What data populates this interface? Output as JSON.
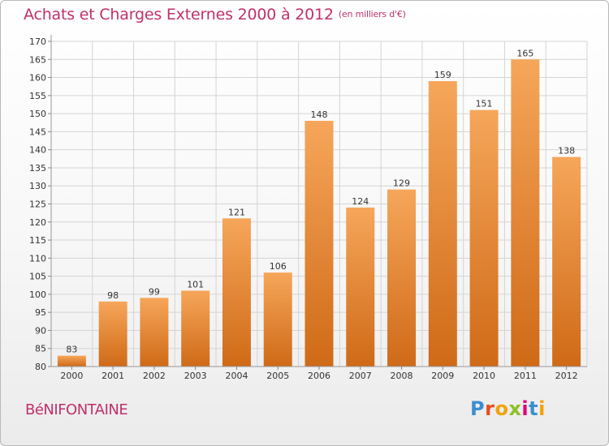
{
  "header": {
    "title": "Achats et Charges Externes 2000 à 2012",
    "subtitle": "(en milliers d'€)"
  },
  "footer": {
    "place": "BéNIFONTAINE",
    "logo_letters": [
      "P",
      "r",
      "o",
      "x",
      "i",
      "t",
      "i"
    ],
    "logo_colors": [
      "#3a8fd0",
      "#e94e1b",
      "#f2a20c",
      "#8cbf26",
      "#e2007a",
      "#3a8fd0",
      "#f2a20c"
    ]
  },
  "colors": {
    "title": "#c0306a",
    "bar_light": "#f6a65a",
    "bar_dark": "#cf6a17",
    "grid": "#d4d4d4",
    "axis_text": "#333333"
  },
  "chart_data": {
    "type": "bar",
    "title": "Achats et Charges Externes 2000 à 2012",
    "xlabel": "",
    "ylabel": "",
    "categories": [
      "2000",
      "2001",
      "2002",
      "2003",
      "2004",
      "2005",
      "2006",
      "2007",
      "2008",
      "2009",
      "2010",
      "2011",
      "2012"
    ],
    "values": [
      83,
      98,
      99,
      101,
      121,
      106,
      148,
      124,
      129,
      159,
      151,
      165,
      138
    ],
    "ylim": [
      80,
      170
    ],
    "yticks": [
      80,
      85,
      90,
      95,
      100,
      105,
      110,
      115,
      120,
      125,
      130,
      135,
      140,
      145,
      150,
      155,
      160,
      165,
      170
    ],
    "grid": true,
    "legend": "none"
  }
}
